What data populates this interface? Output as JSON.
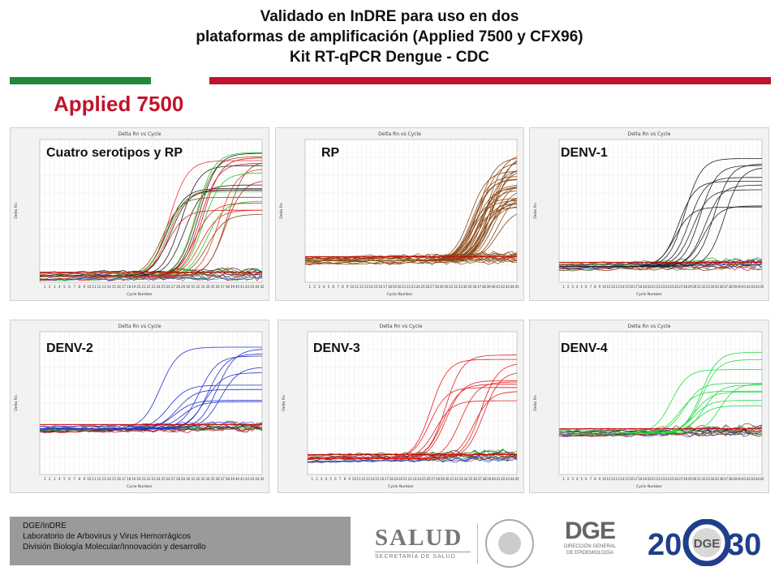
{
  "header": {
    "title_line1": "Validado en InDRE para uso en dos",
    "title_line2": "plataformas de amplificación  (Applied 7500 y CFX96)",
    "title_line3": "Kit RT-qPCR Dengue -  CDC"
  },
  "section_title": "Applied 7500",
  "panels": [
    {
      "label": "Cuatro serotipos y RP",
      "plot_title": "Delta Rn vs Cycle"
    },
    {
      "label": "RP",
      "plot_title": "Delta Rn vs Cycle"
    },
    {
      "label": "DENV-1",
      "plot_title": "Delta Rn vs Cycle"
    },
    {
      "label": "DENV-2",
      "plot_title": "Delta Rn vs Cycle"
    },
    {
      "label": "DENV-3",
      "plot_title": "Delta Rn vs Cycle"
    },
    {
      "label": "DENV-4",
      "plot_title": "Delta Rn vs Cycle"
    }
  ],
  "axis": {
    "x_label": "Cycle Number",
    "y_label": "Delta Rn"
  },
  "colors": {
    "accent_red": "#c0142b",
    "accent_green": "#1f8a3a"
  },
  "footer": {
    "line1": "DGE/InDRE",
    "line2": "Laboratorio de Arbovirus y Virus Hemorrágicos",
    "line3": "División Biología Molecular/Innovación y desarrollo"
  },
  "logos": {
    "salud_main": "SALUD",
    "salud_sub": "SECRETARÍA DE SALUD",
    "dge_main": "DGE",
    "dge_sub1": "DIRECCIÓN GENERAL",
    "dge_sub2": "DE EPIDEMIOLOGÍA",
    "sinave_year_left": "20",
    "sinave_year_right": "30",
    "sinave_center": "DGE"
  }
}
